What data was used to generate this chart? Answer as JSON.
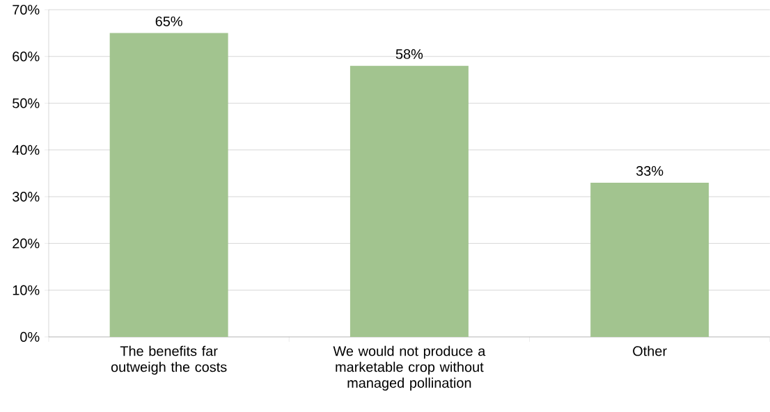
{
  "chart_data": {
    "type": "bar",
    "categories": [
      "The benefits far outweigh the costs",
      "We would not produce a marketable crop without managed pollination",
      "Other"
    ],
    "values": [
      65,
      58,
      33
    ],
    "value_labels": [
      "65%",
      "58%",
      "33%"
    ],
    "color": "#a2c48f",
    "ylim": [
      0,
      70
    ],
    "yticks": [
      {
        "value": 0,
        "label": "0%"
      },
      {
        "value": 10,
        "label": "10%"
      },
      {
        "value": 20,
        "label": "20%"
      },
      {
        "value": 30,
        "label": "30%"
      },
      {
        "value": 40,
        "label": "40%"
      },
      {
        "value": 50,
        "label": "50%"
      },
      {
        "value": 60,
        "label": "60%"
      },
      {
        "value": 70,
        "label": "70%"
      }
    ],
    "grid": "y"
  }
}
